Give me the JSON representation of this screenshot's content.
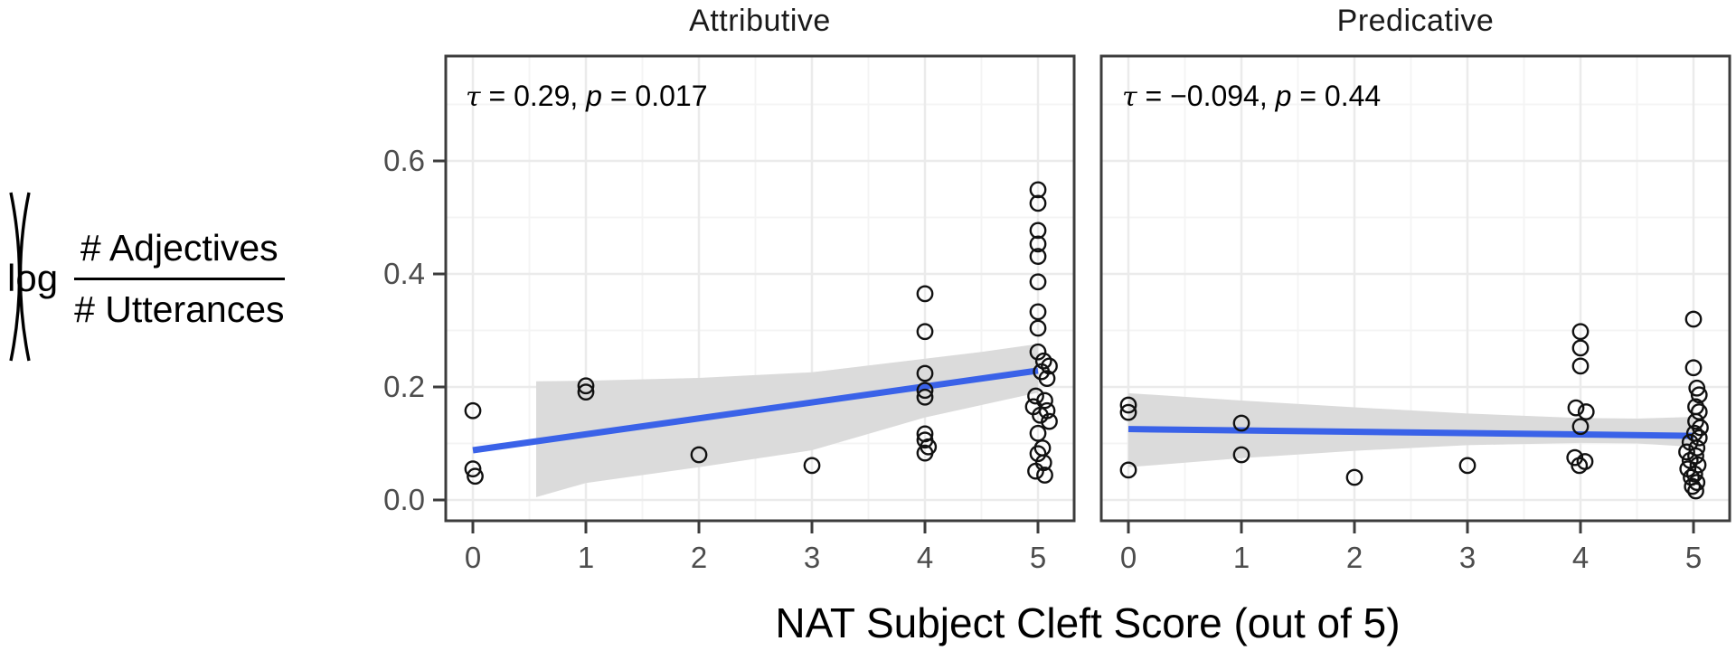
{
  "figure": {
    "x_axis_title": "NAT Subject Cleft Score (out of 5)",
    "y_axis_label": {
      "prefix": "log",
      "numerator": "# Adjectives",
      "denominator": "# Utterances"
    }
  },
  "colors": {
    "trend_line": "#3A62E8",
    "confidence_band": "#DBDBDB",
    "grid_major": "#EBEBEB",
    "grid_minor": "#F4F4F4",
    "panel_border": "#3C3C3C",
    "point_stroke": "#111111",
    "tick_label": "#4D4D4D",
    "background": "#FFFFFF"
  },
  "chart_data": {
    "type": "scatter",
    "title": "",
    "xlabel": "NAT Subject Cleft Score (out of 5)",
    "ylabel": "log(# Adjectives / # Utterances)",
    "xlim": [
      -0.24,
      5.32
    ],
    "ylim": [
      -0.0368,
      0.7856
    ],
    "x_ticks": [
      0,
      1,
      2,
      3,
      4,
      5
    ],
    "x_minor_ticks": [
      0.5,
      1.5,
      2.5,
      3.5,
      4.5
    ],
    "y_ticks": [
      0.0,
      0.2,
      0.4,
      0.6
    ],
    "y_tick_labels": [
      "0.0",
      "0.2",
      "0.4",
      "0.6"
    ],
    "y_minor_ticks": [
      0.1,
      0.3,
      0.5,
      0.7
    ],
    "grid": true,
    "legend": false,
    "facets": [
      {
        "label": "Attributive",
        "annotation": {
          "tau_symbol": "τ",
          "tau_eq": " = 0.29, ",
          "p_symbol": "p",
          "p_eq": " = 0.017"
        },
        "trend": {
          "x0": 0,
          "y0": 0.088,
          "x1": 5,
          "y1": 0.229
        },
        "band": {
          "x": [
            0.56,
            1.0,
            2.0,
            3.0,
            4.0,
            4.5,
            5.0
          ],
          "top": [
            0.21,
            0.211,
            0.216,
            0.226,
            0.25,
            0.262,
            0.276
          ],
          "bottom": [
            0.005,
            0.03,
            0.058,
            0.088,
            0.146,
            0.168,
            0.19
          ]
        },
        "points": [
          [
            0,
            0.158,
            0
          ],
          [
            0,
            0.055,
            0
          ],
          [
            0,
            0.042,
            0.02
          ],
          [
            1,
            0.202,
            0
          ],
          [
            1,
            0.191,
            0
          ],
          [
            2,
            0.08,
            0
          ],
          [
            3,
            0.061,
            0
          ],
          [
            4,
            0.365,
            0
          ],
          [
            4,
            0.298,
            0
          ],
          [
            4,
            0.224,
            0
          ],
          [
            4,
            0.194,
            0
          ],
          [
            4,
            0.182,
            0
          ],
          [
            4,
            0.117,
            0
          ],
          [
            4,
            0.106,
            0
          ],
          [
            4,
            0.094,
            0.03
          ],
          [
            4,
            0.083,
            0
          ],
          [
            5,
            0.549,
            0
          ],
          [
            5,
            0.525,
            0
          ],
          [
            5,
            0.477,
            0
          ],
          [
            5,
            0.453,
            0
          ],
          [
            5,
            0.431,
            0
          ],
          [
            5,
            0.386,
            0
          ],
          [
            5,
            0.333,
            0
          ],
          [
            5,
            0.304,
            0
          ],
          [
            5,
            0.262,
            0
          ],
          [
            5,
            0.246,
            0.05
          ],
          [
            5,
            0.237,
            0.1
          ],
          [
            5,
            0.227,
            0.03
          ],
          [
            5,
            0.215,
            0.08
          ],
          [
            5,
            0.184,
            -0.02
          ],
          [
            5,
            0.176,
            0.06
          ],
          [
            5,
            0.165,
            -0.04
          ],
          [
            5,
            0.158,
            0.08
          ],
          [
            5,
            0.15,
            0.02
          ],
          [
            5,
            0.139,
            0.1
          ],
          [
            5,
            0.118,
            0
          ],
          [
            5,
            0.092,
            0.04
          ],
          [
            5,
            0.082,
            0
          ],
          [
            5,
            0.066,
            0.05
          ],
          [
            5,
            0.051,
            -0.02
          ],
          [
            5,
            0.044,
            0.06
          ]
        ]
      },
      {
        "label": "Predicative",
        "annotation": {
          "tau_symbol": "τ",
          "tau_eq": " = −0.094, ",
          "p_symbol": "p",
          "p_eq": " = 0.44"
        },
        "trend": {
          "x0": 0,
          "y0": 0.1255,
          "x1": 5,
          "y1": 0.1135
        },
        "band": {
          "x": [
            0.0,
            1.0,
            2.0,
            3.0,
            4.0,
            4.5,
            5.0
          ],
          "top": [
            0.189,
            0.176,
            0.164,
            0.153,
            0.145,
            0.144,
            0.147
          ],
          "bottom": [
            0.058,
            0.074,
            0.087,
            0.097,
            0.101,
            0.1,
            0.094
          ]
        },
        "points": [
          [
            0,
            0.168,
            0
          ],
          [
            0,
            0.155,
            0
          ],
          [
            0,
            0.053,
            0
          ],
          [
            1,
            0.136,
            0
          ],
          [
            1,
            0.08,
            0
          ],
          [
            2,
            0.04,
            0
          ],
          [
            3,
            0.061,
            0
          ],
          [
            4,
            0.298,
            0
          ],
          [
            4,
            0.269,
            0
          ],
          [
            4,
            0.237,
            0
          ],
          [
            4,
            0.163,
            -0.04
          ],
          [
            4,
            0.156,
            0.05
          ],
          [
            4,
            0.13,
            0
          ],
          [
            4,
            0.075,
            -0.05
          ],
          [
            4,
            0.068,
            0.04
          ],
          [
            4,
            0.061,
            -0.01
          ],
          [
            5,
            0.32,
            0
          ],
          [
            5,
            0.234,
            0
          ],
          [
            5,
            0.198,
            0.03
          ],
          [
            5,
            0.186,
            0.05
          ],
          [
            5,
            0.165,
            0.02
          ],
          [
            5,
            0.156,
            0.05
          ],
          [
            5,
            0.139,
            0.02
          ],
          [
            5,
            0.128,
            0.06
          ],
          [
            5,
            0.118,
            0.01
          ],
          [
            5,
            0.11,
            0.05
          ],
          [
            5,
            0.102,
            -0.03
          ],
          [
            5,
            0.092,
            0.03
          ],
          [
            5,
            0.085,
            -0.06
          ],
          [
            5,
            0.078,
            0.02
          ],
          [
            5,
            0.07,
            -0.03
          ],
          [
            5,
            0.062,
            0.04
          ],
          [
            5,
            0.055,
            -0.05
          ],
          [
            5,
            0.046,
            0.01
          ],
          [
            5,
            0.04,
            -0.02
          ],
          [
            5,
            0.031,
            0.03
          ],
          [
            5,
            0.024,
            -0.01
          ],
          [
            5,
            0.016,
            0.02
          ]
        ]
      }
    ]
  }
}
